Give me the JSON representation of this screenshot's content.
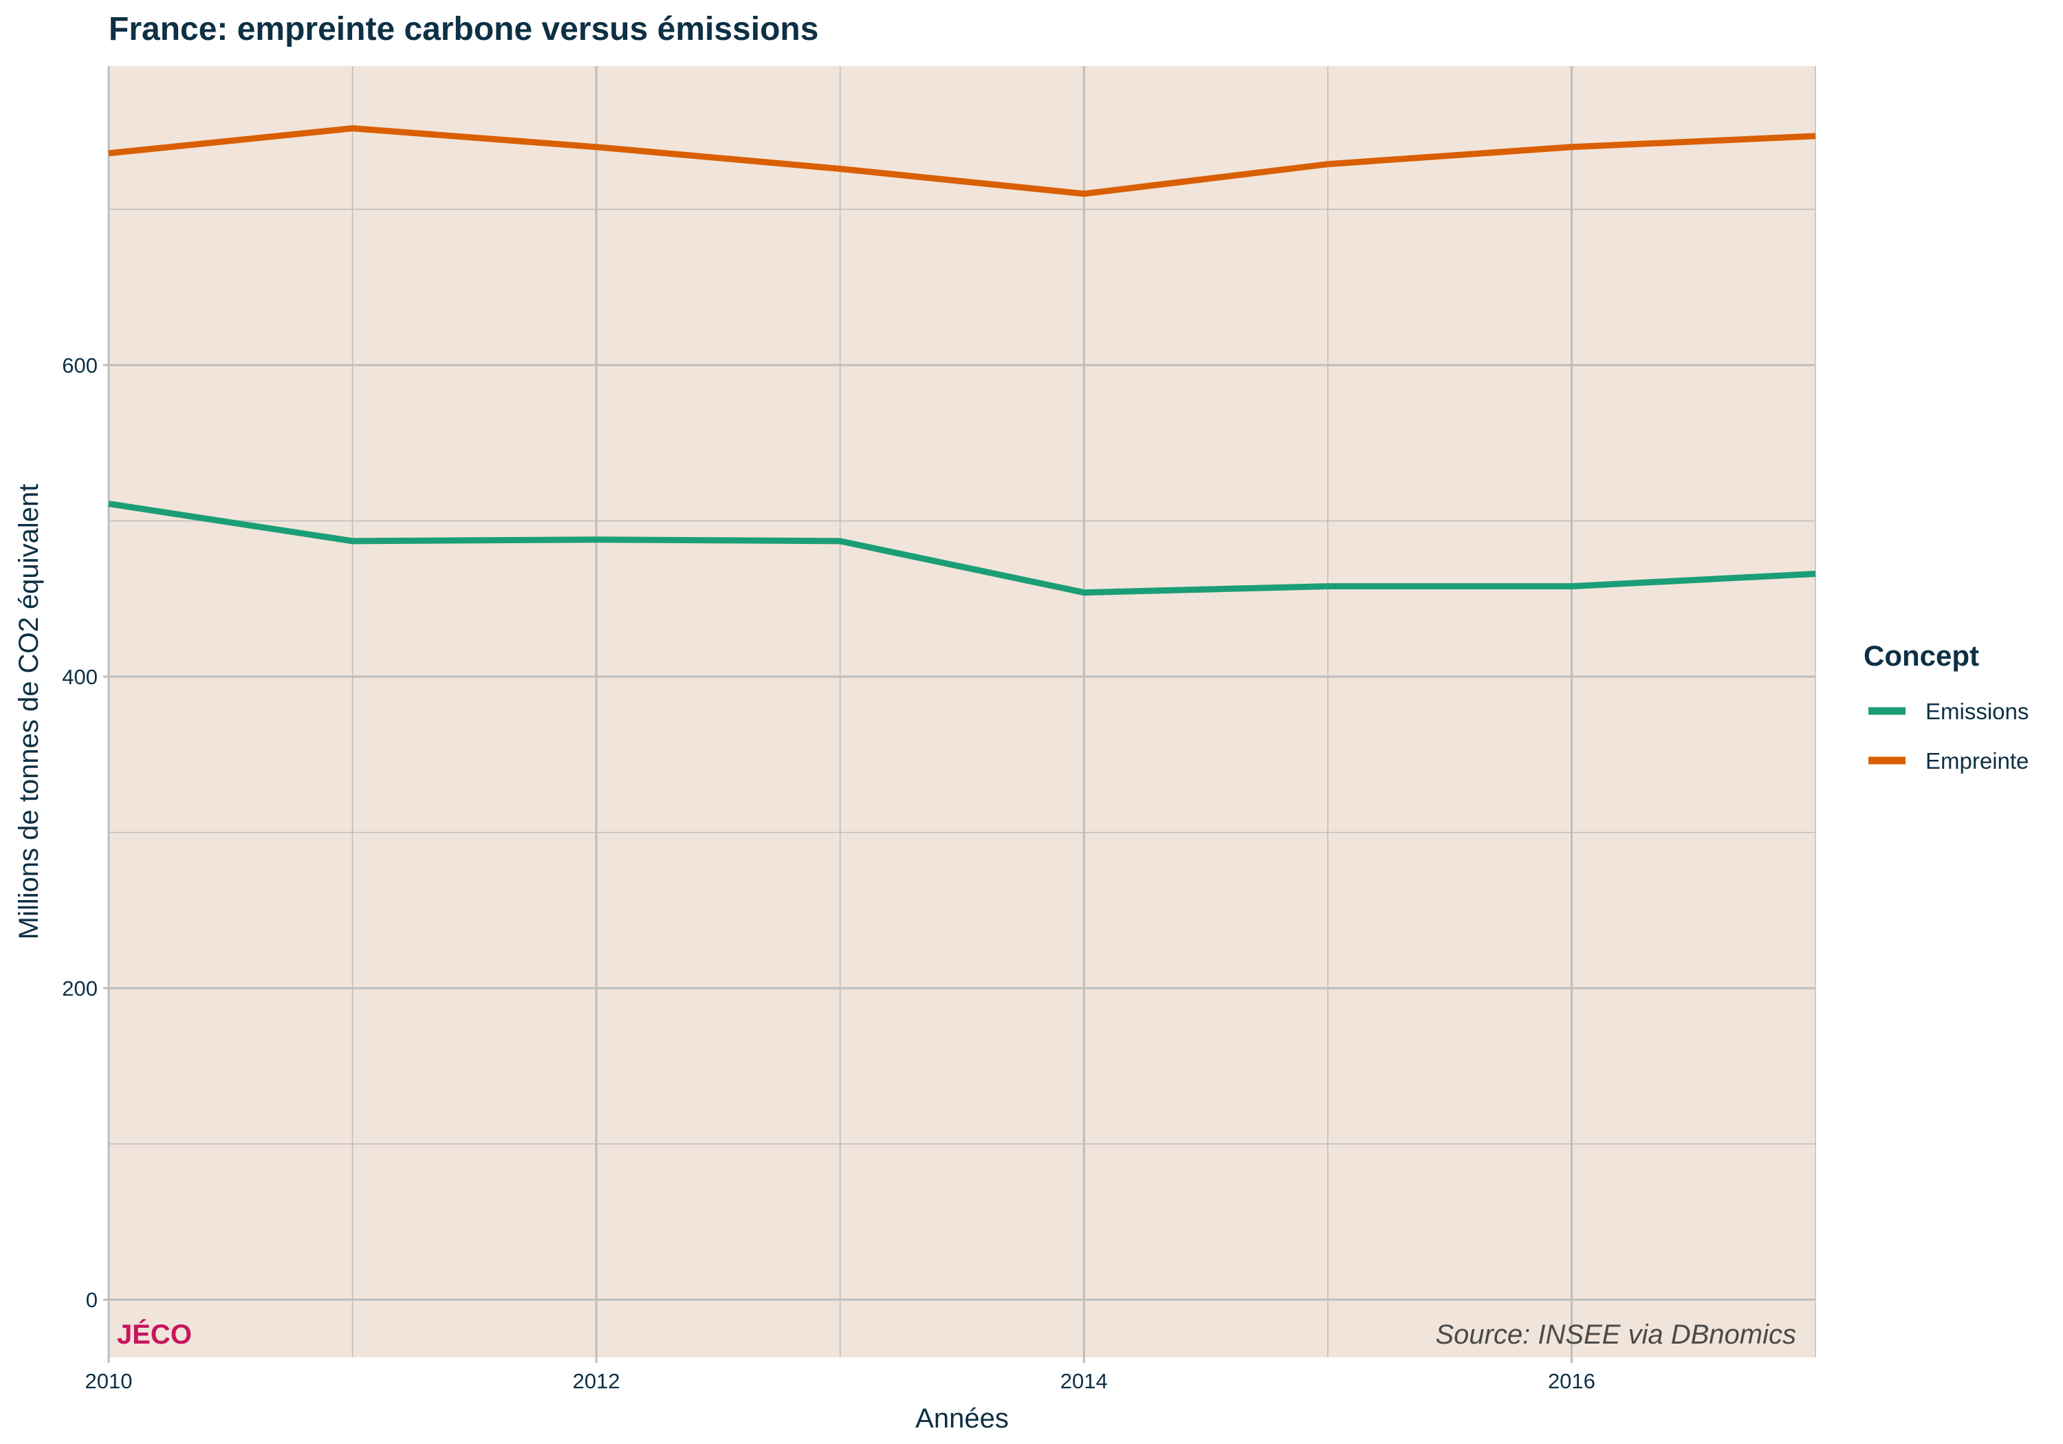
{
  "colors": {
    "panel_background": "#f1e4da",
    "grid": "#bdbdbd",
    "text": "#0d3044",
    "brand": "#c8155d",
    "source": "#4a4a4a",
    "emissions": "#1b9e77",
    "empreinte": "#d95f02"
  },
  "brand_label": "JÉCO",
  "source_label": "Source: INSEE via DBnomics",
  "legend": {
    "title": "Concept",
    "items": [
      {
        "label": "Emissions",
        "color": "#1b9e77"
      },
      {
        "label": "Empreinte",
        "color": "#d95f02"
      }
    ]
  },
  "chart_data": {
    "type": "line",
    "title": "France: empreinte carbone versus émissions",
    "xlabel": "Années",
    "ylabel": "Millions de tonnes de CO2 équivalent",
    "x": [
      2010,
      2011,
      2012,
      2013,
      2014,
      2015,
      2016,
      2017
    ],
    "xlim": [
      2010,
      2017
    ],
    "ylim": [
      -37,
      792
    ],
    "x_ticks": [
      2010,
      2012,
      2014,
      2016
    ],
    "x_tick_labels": [
      "2010",
      "2012",
      "2014",
      "2016"
    ],
    "y_ticks": [
      0,
      200,
      400,
      600
    ],
    "y_tick_labels": [
      "0",
      "200",
      "400",
      "600"
    ],
    "x_minor": [
      2011,
      2013,
      2015,
      2017
    ],
    "y_minor": [
      100,
      300,
      500,
      700
    ],
    "grid": true,
    "legend_position": "right",
    "series": [
      {
        "name": "Emissions",
        "values": [
          511,
          487,
          488,
          487,
          454,
          458,
          458,
          466
        ]
      },
      {
        "name": "Empreinte",
        "values": [
          736,
          752,
          740,
          726,
          710,
          729,
          740,
          747
        ]
      }
    ]
  }
}
